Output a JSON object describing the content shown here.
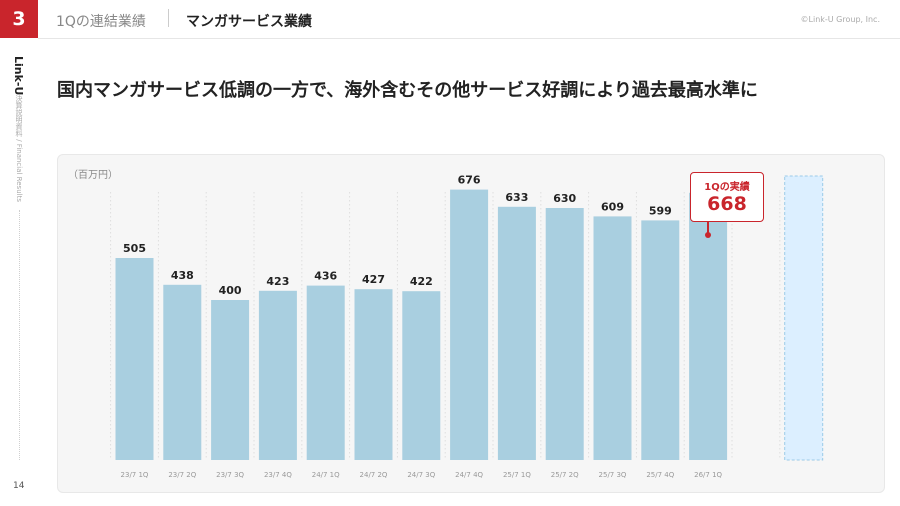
{
  "header": {
    "section_number": "3",
    "breadcrumb": "1Qの連結業績",
    "title": "マンガサービス業績",
    "copyright": "©Link-U Group, Inc."
  },
  "sidebar": {
    "logo": "Link-U",
    "subtitle": "決算説明資料 / Financial Results"
  },
  "page_number": "14",
  "headline": "国内マンガサービス低調の一方で、海外含むその他サービス好調により過去最高水準に",
  "chart_data": {
    "type": "bar",
    "unit_label": "（百万円）",
    "categories": [
      "23/7 1Q",
      "23/7 2Q",
      "23/7 3Q",
      "23/7 4Q",
      "24/7 1Q",
      "24/7 2Q",
      "24/7 3Q",
      "24/7 4Q",
      "25/7 1Q",
      "25/7 2Q",
      "25/7 3Q",
      "25/7 4Q",
      "26/7 1Q"
    ],
    "values": [
      505,
      438,
      400,
      423,
      436,
      427,
      422,
      676,
      633,
      630,
      609,
      599,
      668
    ],
    "data_labels": [
      "505",
      "438",
      "400",
      "423",
      "436",
      "427",
      "422",
      "676",
      "633",
      "630",
      "609",
      "599",
      ""
    ],
    "bar_color": "#a9cfe0",
    "placeholder_bar_color": "#dcefff",
    "highlight_color": "#c9252c",
    "ylim": [
      0,
      1000
    ],
    "grid": "vertical dotted",
    "callout": {
      "label": "1Qの実績",
      "value": "668"
    }
  }
}
